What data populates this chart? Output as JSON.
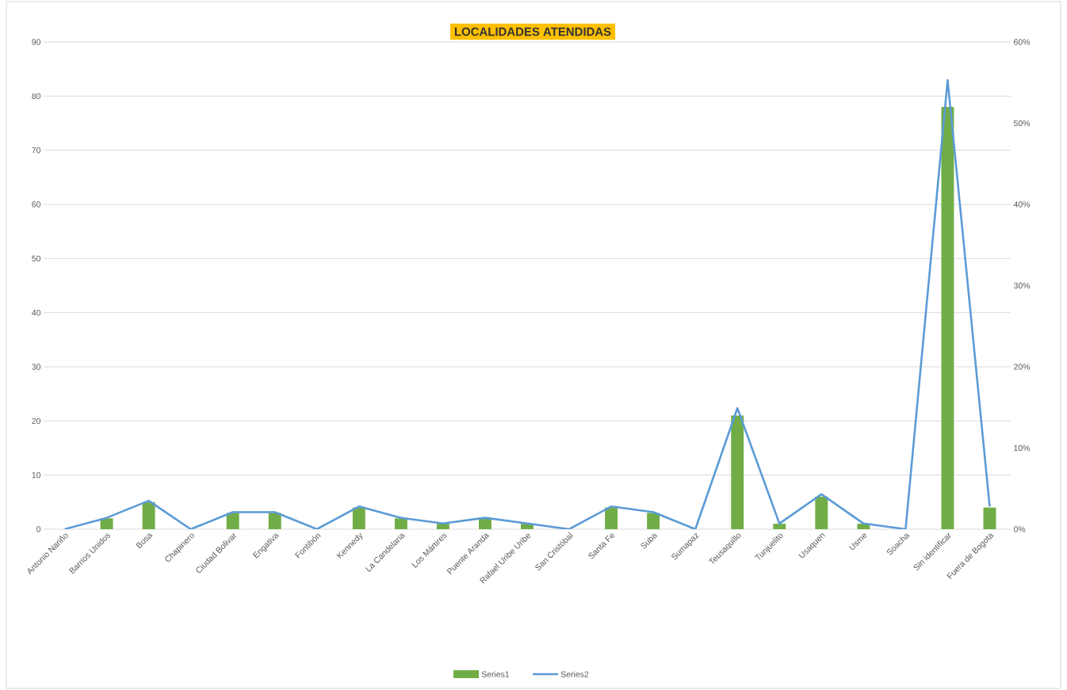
{
  "chart_data": {
    "type": "bar",
    "title": "LOCALIDADES ATENDIDAS",
    "categories": [
      "Antonio Nariño",
      "Barrios Unidos",
      "Bosa",
      "Chapinero",
      "Ciudad Bolivar",
      "Engativa",
      "Fontibón",
      "Kennedy",
      "La Candelaria",
      "Los Mártires",
      "Puente Aranda",
      "Rafael Uribe Uribe",
      "San Cristóbal",
      "Santa Fe",
      "Suba",
      "Sumapaz",
      "Teusaquillo",
      "Tunjuelito",
      "Usaquen",
      "Usme",
      "Soacha",
      "Sin identificar",
      "Fuera de Bogota"
    ],
    "series": [
      {
        "name": "Series1",
        "color": "#70ad47",
        "values": [
          0,
          2,
          5,
          0,
          3,
          3,
          0,
          4,
          2,
          1,
          2,
          1,
          0,
          4,
          3,
          0,
          21,
          1,
          6,
          1,
          0,
          78,
          4
        ]
      },
      {
        "name": "Series2",
        "type": "line",
        "axis": "y2",
        "color": "#5b9bd5",
        "values": [
          0,
          1.4,
          3.5,
          0,
          2.1,
          2.1,
          0,
          2.8,
          1.4,
          0.7,
          1.4,
          0.7,
          0,
          2.8,
          2.1,
          0,
          14.9,
          0.7,
          4.3,
          0.7,
          0,
          55.3,
          2.8
        ]
      }
    ],
    "ylim": [
      0,
      90
    ],
    "yticks": [
      0,
      10,
      20,
      30,
      40,
      50,
      60,
      70,
      80,
      90
    ],
    "y2lim": [
      0,
      60
    ],
    "y2ticks": [
      {
        "value": 0,
        "label": "0%"
      },
      {
        "value": 10,
        "label": "10%"
      },
      {
        "value": 20,
        "label": "20%"
      },
      {
        "value": 30,
        "label": "30%"
      },
      {
        "value": 40,
        "label": "40%"
      },
      {
        "value": 50,
        "label": "50%"
      },
      {
        "value": 60,
        "label": "60%"
      }
    ],
    "grid": "y",
    "legend": "bottom"
  }
}
